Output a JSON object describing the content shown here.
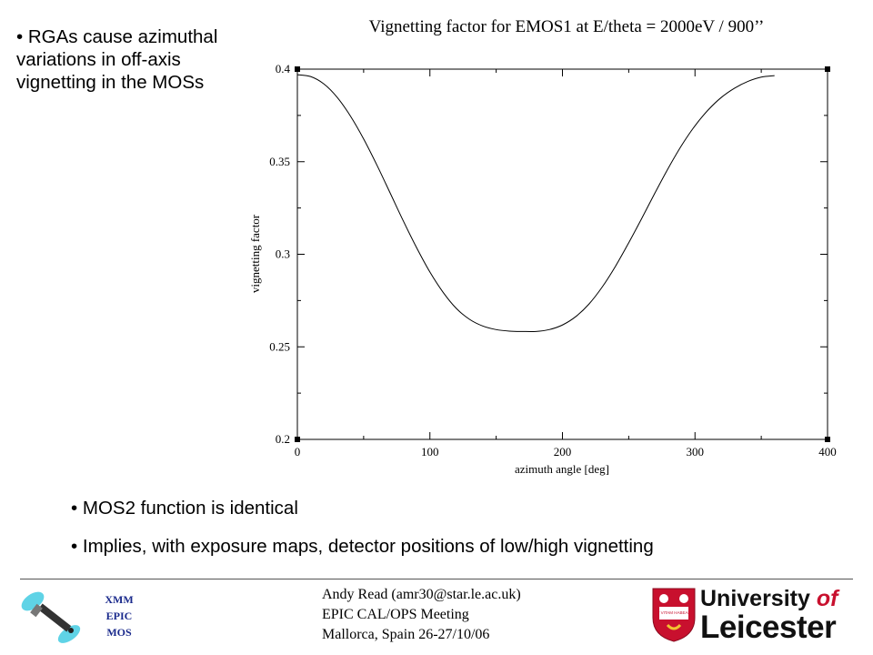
{
  "slide": {
    "intro_bullet": "• RGAs cause azimuthal variations in off-axis vignetting in the MOSs",
    "bullets": [
      "• MOS2 function is identical",
      "• Implies, with exposure maps, detector positions of low/high vignetting"
    ]
  },
  "footer": {
    "logo_lines": [
      "XMM",
      "EPIC",
      "MOS"
    ],
    "author": "Andy Read (amr30@star.le.ac.uk)",
    "meeting": "EPIC CAL/OPS Meeting",
    "venue": "Mallorca, Spain 26-27/10/06",
    "university_line1": "University",
    "university_of": "of",
    "university_line2": "Leicester",
    "crest_motto": "UT VITAM HABEANT"
  },
  "colors": {
    "text": "#000000",
    "logo_blue": "#1a2a8c",
    "crest_red": "#c8102e"
  },
  "chart_data": {
    "type": "line",
    "title": "Vignetting factor for EMOS1 at E/theta = 2000eV / 900’’",
    "xlabel": "azimuth angle [deg]",
    "ylabel": "vignetting factor",
    "xlim": [
      0,
      400
    ],
    "ylim": [
      0.2,
      0.4
    ],
    "xticks": [
      0,
      100,
      200,
      300,
      400
    ],
    "xtick_labels": [
      "0",
      "100",
      "200",
      "300",
      "400"
    ],
    "yticks": [
      0.2,
      0.25,
      0.3,
      0.35,
      0.4
    ],
    "ytick_labels": [
      "0.2",
      "0.25",
      "0.3",
      "0.35",
      "0.4"
    ],
    "grid": false,
    "series": [
      {
        "x": [
          0,
          10,
          20,
          30,
          40,
          50,
          60,
          70,
          80,
          90,
          100,
          110,
          120,
          130,
          140,
          150,
          160,
          170,
          180,
          190,
          200,
          210,
          220,
          230,
          240,
          250,
          260,
          270,
          280,
          290,
          300,
          310,
          320,
          330,
          340,
          350,
          360
        ],
        "values": [
          0.397,
          0.396,
          0.392,
          0.3848,
          0.3747,
          0.3623,
          0.3482,
          0.3331,
          0.3179,
          0.3035,
          0.2904,
          0.2794,
          0.2707,
          0.2648,
          0.2612,
          0.2593,
          0.2585,
          0.2583,
          0.2583,
          0.2593,
          0.2618,
          0.2663,
          0.2731,
          0.2823,
          0.2935,
          0.3062,
          0.3196,
          0.3334,
          0.3467,
          0.3589,
          0.3694,
          0.378,
          0.3848,
          0.3898,
          0.3934,
          0.3957,
          0.3965
        ]
      }
    ]
  }
}
